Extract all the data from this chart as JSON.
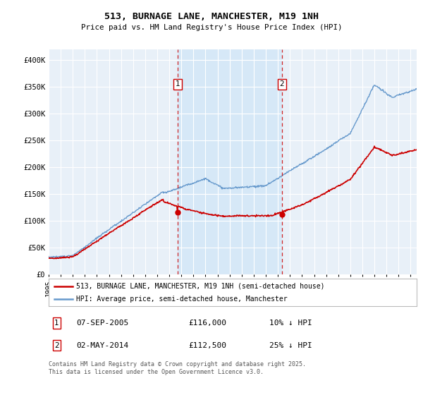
{
  "title": "513, BURNAGE LANE, MANCHESTER, M19 1NH",
  "subtitle": "Price paid vs. HM Land Registry's House Price Index (HPI)",
  "legend_line1": "513, BURNAGE LANE, MANCHESTER, M19 1NH (semi-detached house)",
  "legend_line2": "HPI: Average price, semi-detached house, Manchester",
  "footnote": "Contains HM Land Registry data © Crown copyright and database right 2025.\nThis data is licensed under the Open Government Licence v3.0.",
  "marker1": {
    "label": "1",
    "date": "07-SEP-2005",
    "price": "£116,000",
    "pct": "10% ↓ HPI"
  },
  "marker2": {
    "label": "2",
    "date": "02-MAY-2014",
    "price": "£112,500",
    "pct": "25% ↓ HPI"
  },
  "price_color": "#cc0000",
  "hpi_color": "#6699cc",
  "highlight_color": "#d6e8f7",
  "background_color": "#e8f0f8",
  "ylim": [
    0,
    420000
  ],
  "yticks": [
    0,
    50000,
    100000,
    150000,
    200000,
    250000,
    300000,
    350000,
    400000
  ],
  "ytick_labels": [
    "£0",
    "£50K",
    "£100K",
    "£150K",
    "£200K",
    "£250K",
    "£300K",
    "£350K",
    "£400K"
  ],
  "m1_year": 2005.68,
  "m2_year": 2014.34,
  "m1_price": 116000,
  "m2_price": 112500
}
